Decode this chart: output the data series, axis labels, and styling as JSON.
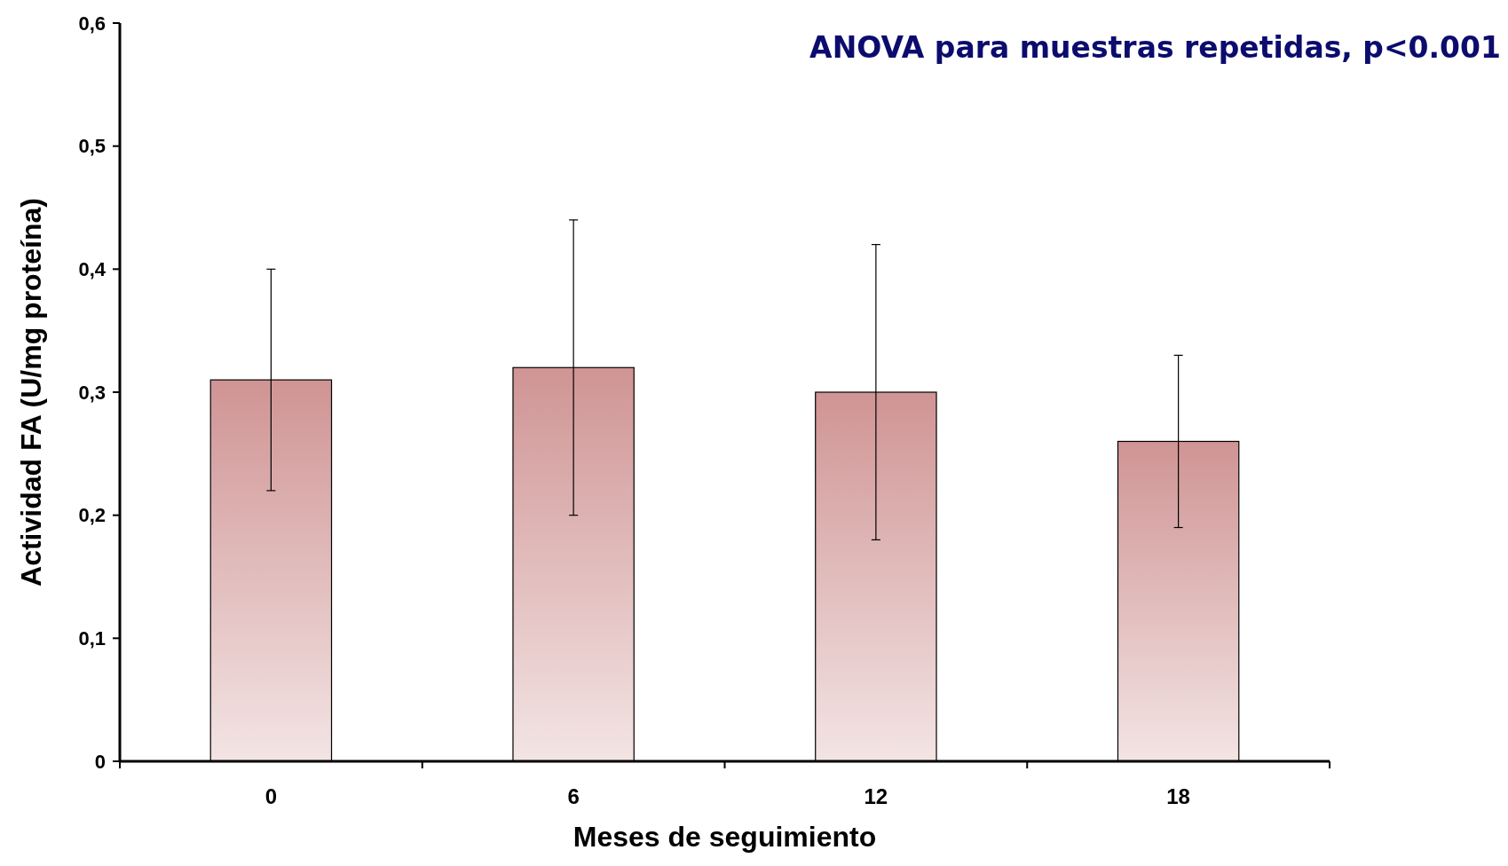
{
  "chart_data": {
    "type": "bar",
    "xlabel": "Meses de seguimiento",
    "ylabel": "Actividad FA  (U/mg proteína)",
    "annotations": [
      "ANOVA para muestras repetidas, p<0.001"
    ],
    "categories": [
      "0",
      "6",
      "12",
      "18"
    ],
    "values": [
      0.31,
      0.32,
      0.3,
      0.26
    ],
    "errors": [
      0.09,
      0.12,
      0.12,
      0.07
    ],
    "color": "#d09494",
    "ylim": [
      0,
      0.6
    ],
    "yticks": [
      {
        "value": 0,
        "label": "0"
      },
      {
        "value": 0.1,
        "label": "0,1"
      },
      {
        "value": 0.2,
        "label": "0,2"
      },
      {
        "value": 0.3,
        "label": "0,3"
      },
      {
        "value": 0.4,
        "label": "0,4"
      },
      {
        "value": 0.5,
        "label": "0,5"
      },
      {
        "value": 0.6,
        "label": "0,6"
      }
    ],
    "grid": false
  }
}
